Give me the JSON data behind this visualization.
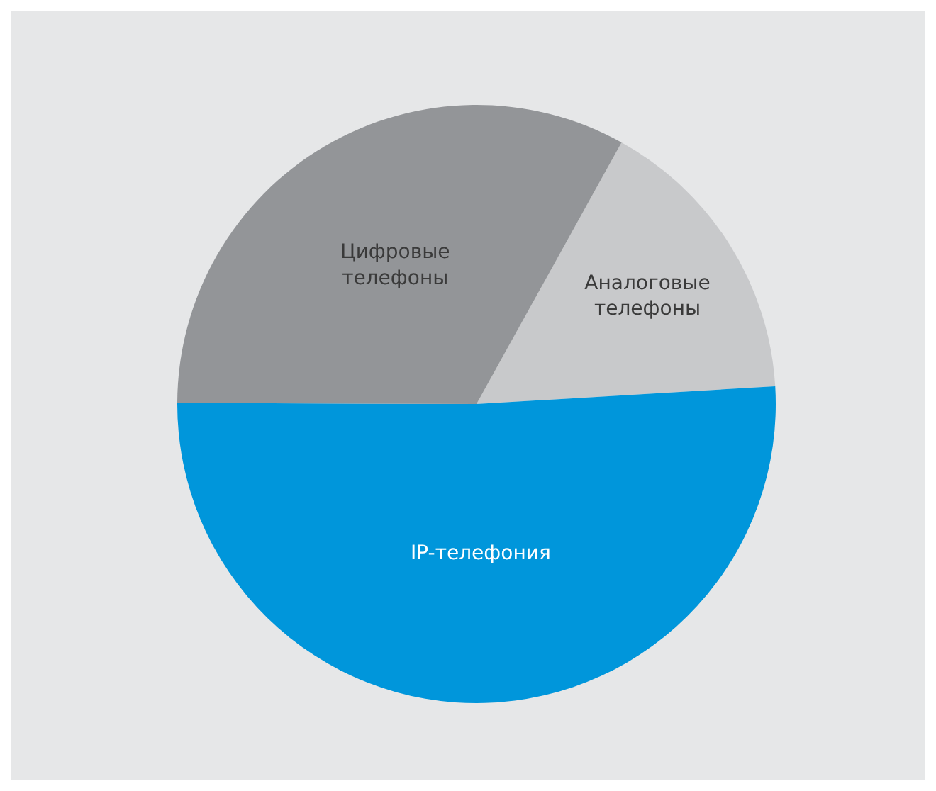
{
  "chart_data": {
    "type": "pie",
    "categories": [
      "Аналоговые телефоны",
      "IP-телефония",
      "Цифровые телефоны"
    ],
    "values": [
      16,
      51,
      33
    ],
    "colors": [
      "#c8c9cb",
      "#0096db",
      "#939598"
    ],
    "legend": false
  }
}
